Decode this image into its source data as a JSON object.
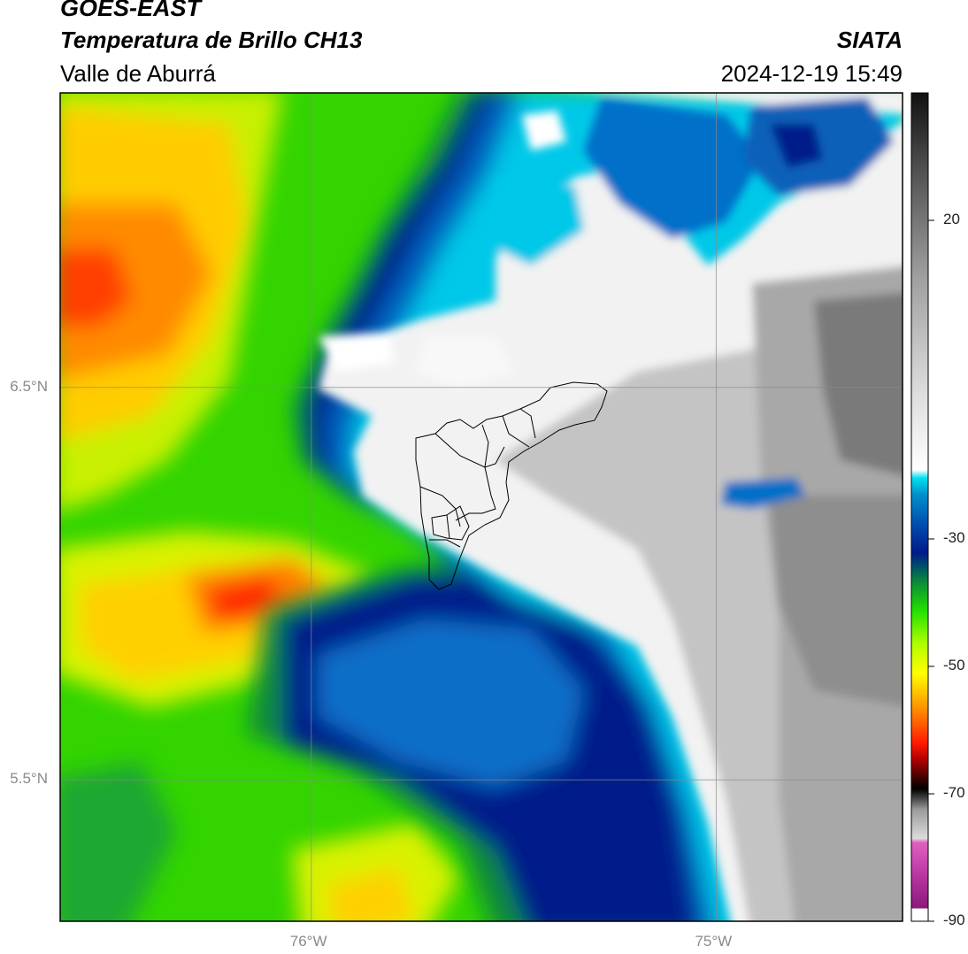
{
  "header": {
    "satellite": "GOES-EAST",
    "product": "Temperatura de Brillo CH13",
    "region": "Valle de Aburrá",
    "organization": "SIATA",
    "datetime": "2024-12-19 15:49"
  },
  "map": {
    "lat_gridlines": [
      {
        "value": 6.5,
        "label": "6.5°N"
      },
      {
        "value": 5.5,
        "label": "5.5°N"
      }
    ],
    "lon_gridlines": [
      {
        "value": -76.0,
        "label": "76°W"
      },
      {
        "value": -75.0,
        "label": "75°W"
      }
    ],
    "extent": {
      "lon_min": -76.62,
      "lon_max": -74.54,
      "lat_min": 5.14,
      "lat_max": 7.25
    }
  },
  "colorbar": {
    "min": -90,
    "max": 40,
    "ticks": [
      {
        "value": 20,
        "label": "20"
      },
      {
        "value": -30,
        "label": "-30"
      },
      {
        "value": -50,
        "label": "-50"
      },
      {
        "value": -70,
        "label": "-70"
      },
      {
        "value": -90,
        "label": "-90"
      }
    ]
  }
}
